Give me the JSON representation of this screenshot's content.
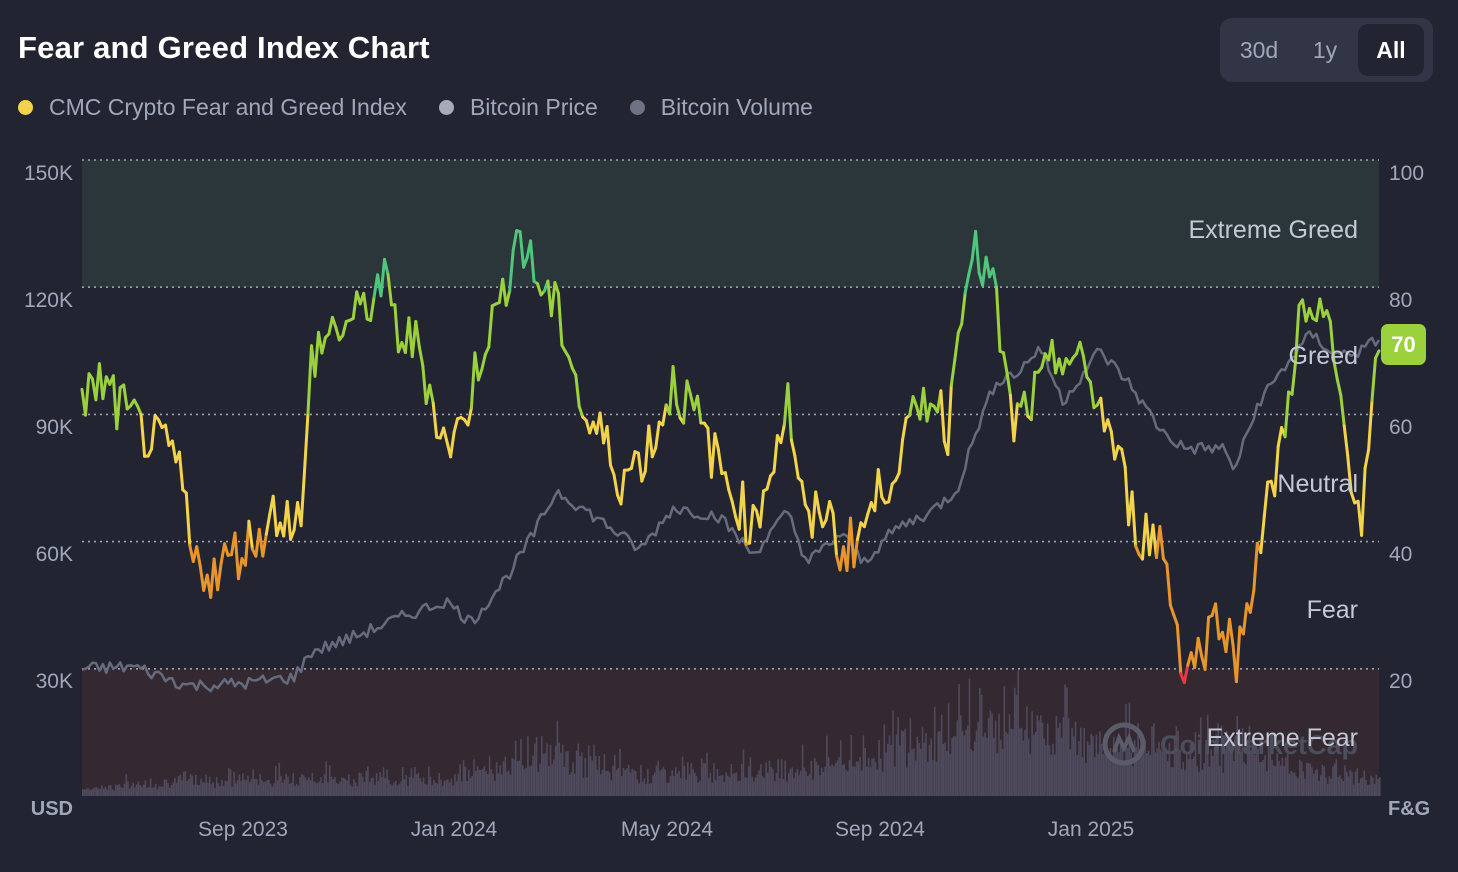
{
  "title": "Fear and Greed Index Chart",
  "range_buttons": [
    "30d",
    "1y",
    "All"
  ],
  "range_active": "All",
  "legend": [
    {
      "label": "CMC Crypto Fear and Greed Index",
      "color": "#f3d34a"
    },
    {
      "label": "Bitcoin Price",
      "color": "#a6abba"
    },
    {
      "label": "Bitcoin Volume",
      "color": "#6d7284"
    }
  ],
  "watermark": "CoinMarketCap",
  "colors": {
    "background": "#222531",
    "extreme_greed_zone": "#2a3639",
    "extreme_fear_zone": "#342831",
    "extreme_greed": "#4fc67c",
    "greed": "#9bd13c",
    "neutral": "#f3d34a",
    "fear": "#e8962c",
    "extreme_fear": "#ea3943",
    "price_line": "#666b7d",
    "volume_bars": "#4e4a5c",
    "grid": "#c8ccd6"
  },
  "chart_data": {
    "type": "line",
    "title": "Fear and Greed Index Chart",
    "x_ticks": [
      "Sep 2023",
      "Jan 2024",
      "May 2024",
      "Sep 2024",
      "Jan 2025"
    ],
    "x_range": [
      "2023-06-15",
      "2025-06-30"
    ],
    "left_axis": {
      "unit": "USD",
      "ticks": [
        "30K",
        "60K",
        "90K",
        "120K",
        "150K"
      ],
      "range": [
        0,
        150000
      ]
    },
    "right_axis": {
      "unit": "F&G",
      "ticks": [
        "20",
        "40",
        "60",
        "80",
        "100"
      ],
      "range": [
        0,
        100
      ]
    },
    "zones": [
      {
        "label": "Extreme Greed",
        "range": [
          80,
          100
        ]
      },
      {
        "label": "Greed",
        "range": [
          60,
          80
        ]
      },
      {
        "label": "Neutral",
        "range": [
          40,
          60
        ]
      },
      {
        "label": "Fear",
        "range": [
          20,
          40
        ]
      },
      {
        "label": "Extreme Fear",
        "range": [
          0,
          20
        ]
      }
    ],
    "current_value": "70",
    "series": [
      {
        "name": "CMC Crypto Fear and Greed Index",
        "axis": "right",
        "x": [
          "2023-06-15",
          "2023-06-25",
          "2023-07-10",
          "2023-07-25",
          "2023-08-10",
          "2023-08-17",
          "2023-08-31",
          "2023-09-10",
          "2023-09-25",
          "2023-10-05",
          "2023-10-20",
          "2023-10-25",
          "2023-11-05",
          "2023-11-20",
          "2023-12-05",
          "2023-12-15",
          "2023-12-25",
          "2024-01-03",
          "2024-01-10",
          "2024-01-20",
          "2024-02-01",
          "2024-02-10",
          "2024-02-20",
          "2024-03-01",
          "2024-03-12",
          "2024-03-20",
          "2024-03-30",
          "2024-04-10",
          "2024-04-20",
          "2024-05-01",
          "2024-05-10",
          "2024-05-20",
          "2024-06-01",
          "2024-06-15",
          "2024-07-01",
          "2024-07-05",
          "2024-07-15",
          "2024-07-25",
          "2024-08-05",
          "2024-08-15",
          "2024-08-25",
          "2024-09-06",
          "2024-09-20",
          "2024-10-01",
          "2024-10-15",
          "2024-10-25",
          "2024-11-05",
          "2024-11-12",
          "2024-11-20",
          "2024-12-01",
          "2024-12-15",
          "2024-12-30",
          "2025-01-10",
          "2025-01-20",
          "2025-02-01",
          "2025-02-10",
          "2025-02-25",
          "2025-03-10",
          "2025-03-20",
          "2025-04-01",
          "2025-04-08",
          "2025-04-20",
          "2025-05-05",
          "2025-05-15",
          "2025-06-01",
          "2025-06-10",
          "2025-06-20",
          "2025-06-30"
        ],
        "values": [
          62,
          65,
          60,
          56,
          52,
          37,
          35,
          38,
          41,
          45,
          43,
          69,
          73,
          75,
          81,
          72,
          71,
          62,
          55,
          58,
          72,
          76,
          89,
          82,
          77,
          72,
          59,
          56,
          50,
          53,
          57,
          65,
          60,
          52,
          44,
          42,
          52,
          62,
          41,
          46,
          38,
          42,
          50,
          56,
          64,
          58,
          86,
          84,
          80,
          58,
          63,
          70,
          67,
          62,
          52,
          42,
          40,
          20,
          23,
          30,
          20,
          37,
          55,
          75,
          74,
          58,
          43,
          70
        ]
      },
      {
        "name": "Bitcoin Price",
        "axis": "left",
        "x": [
          "2023-06-15",
          "2023-07-15",
          "2023-08-15",
          "2023-09-15",
          "2023-10-15",
          "2023-10-25",
          "2023-11-15",
          "2023-12-15",
          "2024-01-10",
          "2024-01-25",
          "2024-02-15",
          "2024-03-01",
          "2024-03-14",
          "2024-04-15",
          "2024-05-01",
          "2024-05-20",
          "2024-06-15",
          "2024-07-05",
          "2024-07-25",
          "2024-08-05",
          "2024-08-25",
          "2024-09-06",
          "2024-09-25",
          "2024-10-15",
          "2024-10-30",
          "2024-11-12",
          "2024-11-22",
          "2024-12-05",
          "2024-12-17",
          "2024-12-30",
          "2025-01-20",
          "2025-02-05",
          "2025-02-25",
          "2025-03-10",
          "2025-04-01",
          "2025-04-08",
          "2025-04-22",
          "2025-05-10",
          "2025-05-22",
          "2025-06-05",
          "2025-06-20",
          "2025-06-30"
        ],
        "values": [
          30000,
          30500,
          26000,
          26500,
          28000,
          34000,
          37000,
          42000,
          46000,
          41000,
          52000,
          62000,
          72000,
          63000,
          58000,
          68000,
          66000,
          57000,
          67000,
          55000,
          62000,
          55000,
          63000,
          67000,
          72000,
          88000,
          98000,
          100000,
          106000,
          93000,
          105000,
          98000,
          86000,
          82000,
          82000,
          77000,
          93000,
          103000,
          109000,
          104000,
          105000,
          108000
        ]
      },
      {
        "name": "Bitcoin Volume",
        "axis": "left",
        "x": [
          "2023-06-15",
          "2023-08-17",
          "2023-10-25",
          "2024-01-11",
          "2024-03-05",
          "2024-05-01",
          "2024-08-05",
          "2024-11-12",
          "2024-12-05",
          "2025-02-03",
          "2025-03-03",
          "2025-04-07",
          "2025-05-12",
          "2025-06-30"
        ],
        "values": [
          2500,
          5000,
          6000,
          5500,
          14000,
          7000,
          9000,
          22000,
          25000,
          18000,
          13000,
          16000,
          9000,
          5000
        ]
      }
    ]
  }
}
